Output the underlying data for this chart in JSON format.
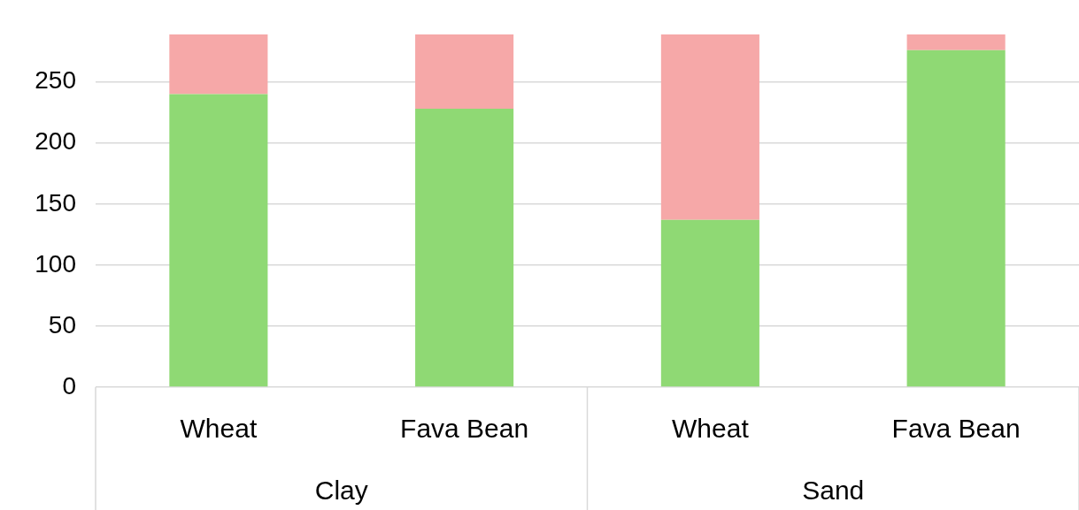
{
  "chart_data": {
    "type": "bar",
    "stacked": true,
    "categories": [
      "Wheat",
      "Fava Bean",
      "Wheat",
      "Fava Bean"
    ],
    "series": [
      {
        "color": "#8fd974",
        "values": [
          240,
          228,
          137,
          276
        ]
      },
      {
        "color": "#f6a8a8",
        "values": [
          49,
          61,
          152,
          13
        ]
      }
    ],
    "annotations": [
      "Clay",
      "Sand"
    ],
    "ylim": [
      0,
      289
    ],
    "yticks": [
      0,
      50,
      100,
      150,
      200,
      250
    ],
    "grid": "y"
  }
}
